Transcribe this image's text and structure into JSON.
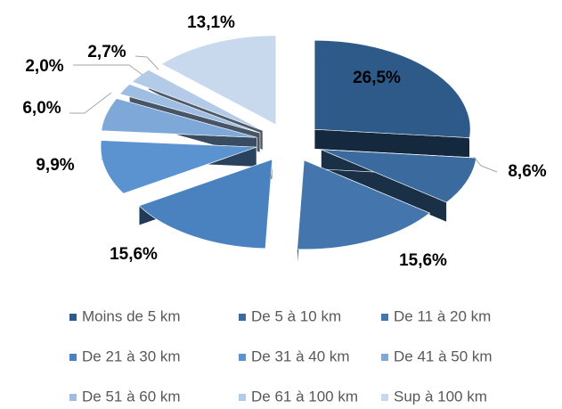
{
  "chart_data": {
    "type": "pie",
    "categories": [
      "Moins de 5 km",
      "De 5 à 10 km",
      "De 11 à 20 km",
      "De 21 à 30 km",
      "De 31 à 40 km",
      "De 41 à 50 km",
      "De 51 à 60 km",
      "De 61 à 100 km",
      "Sup à 100 km"
    ],
    "values": [
      26.5,
      8.6,
      15.6,
      15.6,
      9.9,
      6.0,
      2.0,
      2.7,
      13.1
    ],
    "value_labels": [
      "26,5%",
      "8,6%",
      "15,6%",
      "15,6%",
      "9,9%",
      "6,0%",
      "2,0%",
      "2,7%",
      "13,1%"
    ],
    "colors": [
      "#2e5a8a",
      "#3a6a9e",
      "#4475ad",
      "#4a82c0",
      "#5b93d0",
      "#7ea8d8",
      "#9dbde3",
      "#b3cbe8",
      "#c8d8ed"
    ],
    "legend": "bottom"
  }
}
